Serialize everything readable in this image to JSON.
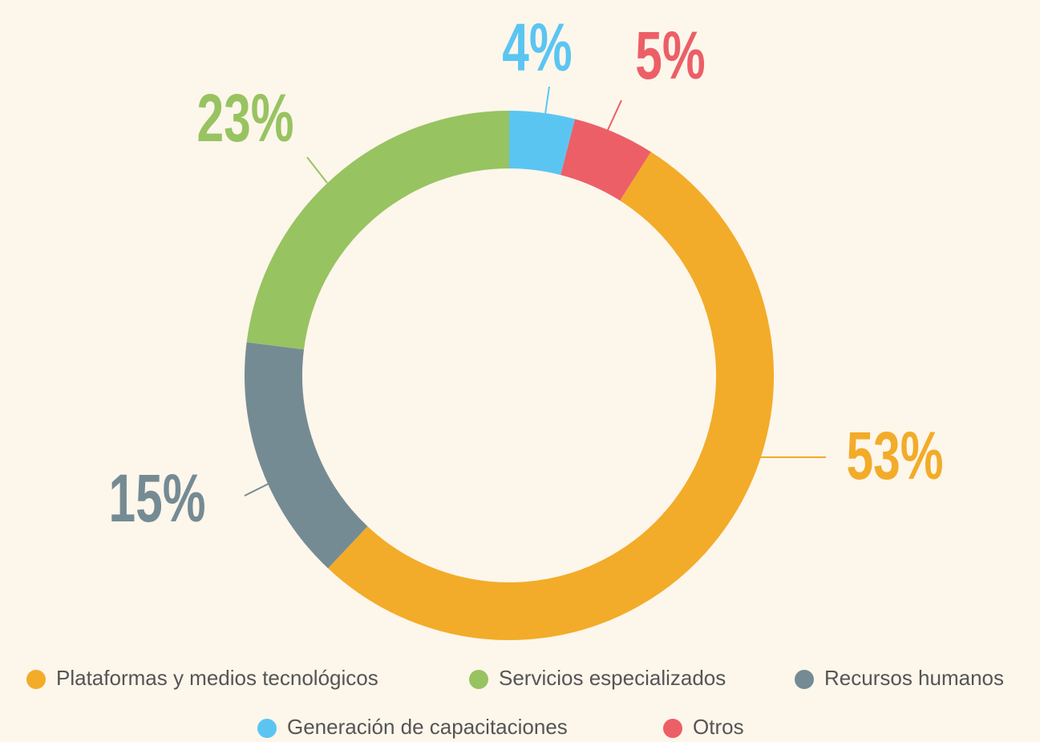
{
  "chart_data": {
    "type": "donut",
    "categories": [
      "Generación de capacitaciones",
      "Otros",
      "Plataformas y medios tecnológicos",
      "Recursos humanos",
      "Servicios especializados"
    ],
    "values": [
      4,
      5,
      53,
      15,
      23
    ],
    "value_labels": [
      "4%",
      "5%",
      "53%",
      "15%",
      "23%"
    ],
    "colors": [
      "#5bc5f2",
      "#ec5f67",
      "#f2ac29",
      "#758b94",
      "#98c361"
    ]
  }
}
